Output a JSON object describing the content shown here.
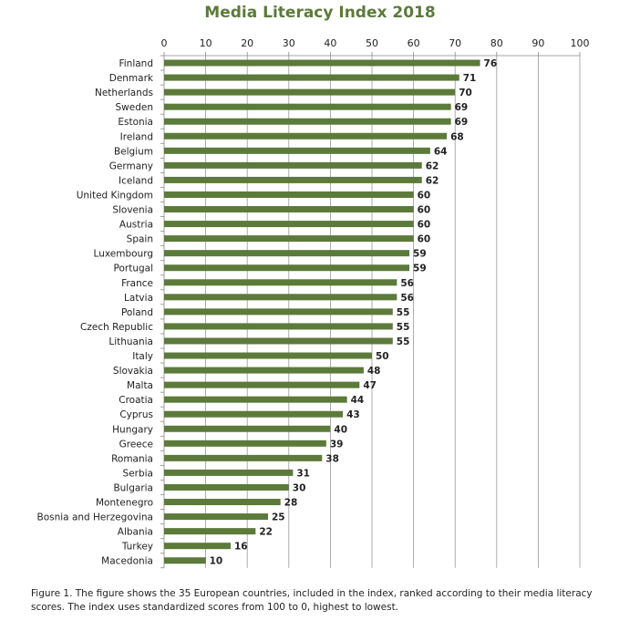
{
  "chart_data": {
    "type": "bar",
    "orientation": "horizontal",
    "title": "Media Literacy Index 2018",
    "xlabel": "",
    "ylabel": "",
    "xlim": [
      0,
      100
    ],
    "x_ticks": [
      0,
      10,
      20,
      30,
      40,
      50,
      60,
      70,
      80,
      90,
      100
    ],
    "axis_position": "top",
    "grid": true,
    "bar_color": "#5c7a3a",
    "categories": [
      "Finland",
      "Denmark",
      "Netherlands",
      "Sweden",
      "Estonia",
      "Ireland",
      "Belgium",
      "Germany",
      "Iceland",
      "United Kingdom",
      "Slovenia",
      "Austria",
      "Spain",
      "Luxembourg",
      "Portugal",
      "France",
      "Latvia",
      "Poland",
      "Czech Republic",
      "Lithuania",
      "Italy",
      "Slovakia",
      "Malta",
      "Croatia",
      "Cyprus",
      "Hungary",
      "Greece",
      "Romania",
      "Serbia",
      "Bulgaria",
      "Montenegro",
      "Bosnia and Herzegovina",
      "Albania",
      "Turkey",
      "Macedonia"
    ],
    "values": [
      76,
      71,
      70,
      69,
      69,
      68,
      64,
      62,
      62,
      60,
      60,
      60,
      60,
      59,
      59,
      56,
      56,
      55,
      55,
      55,
      50,
      48,
      47,
      44,
      43,
      40,
      39,
      38,
      31,
      30,
      28,
      25,
      22,
      16,
      10
    ]
  },
  "caption": "Figure 1. The figure shows the 35 European countries, included in the index, ranked according to their media literacy scores. The index uses standardized scores from 100 to 0, highest to lowest."
}
